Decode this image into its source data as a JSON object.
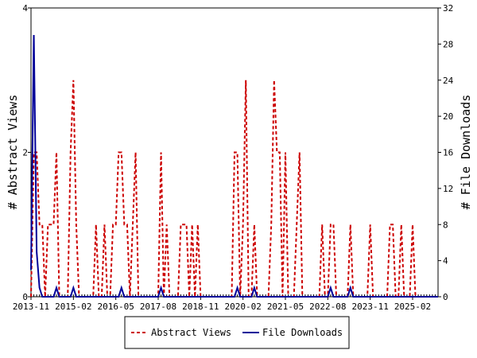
{
  "chart_data": {
    "type": "line",
    "y_left_label": "# Abstract Views",
    "y_right_label": "# File Downloads",
    "y_left_lim": [
      0,
      4
    ],
    "y_left_ticks": [
      0,
      2,
      4
    ],
    "y_right_lim": [
      0,
      32
    ],
    "y_right_ticks": [
      0,
      4,
      8,
      12,
      16,
      20,
      24,
      28,
      32
    ],
    "x_start": "2013-11",
    "x_end": "2025-11",
    "x_tick_labels": [
      "2013-11",
      "2015-02",
      "2016-05",
      "2017-08",
      "2018-11",
      "2020-02",
      "2021-05",
      "2022-08",
      "2023-11",
      "2025-02"
    ],
    "legend_position": "bottom",
    "series": [
      {
        "name": "Abstract Views",
        "axis": "left",
        "color": "#cc0000",
        "style": "dashed",
        "points": [
          [
            "2013-11",
            0
          ],
          [
            "2013-12",
            2
          ],
          [
            "2014-01",
            2
          ],
          [
            "2014-02",
            1
          ],
          [
            "2014-03",
            1
          ],
          [
            "2014-04",
            0
          ],
          [
            "2014-05",
            1
          ],
          [
            "2014-06",
            1
          ],
          [
            "2014-07",
            1
          ],
          [
            "2014-08",
            2
          ],
          [
            "2014-09",
            0
          ],
          [
            "2014-10",
            0
          ],
          [
            "2014-11",
            0
          ],
          [
            "2014-12",
            0
          ],
          [
            "2015-01",
            2
          ],
          [
            "2015-02",
            3
          ],
          [
            "2015-03",
            1
          ],
          [
            "2015-04",
            0
          ],
          [
            "2015-05",
            0
          ],
          [
            "2015-06",
            0
          ],
          [
            "2015-07",
            0
          ],
          [
            "2015-08",
            0
          ],
          [
            "2015-09",
            0
          ],
          [
            "2015-10",
            1
          ],
          [
            "2015-11",
            0
          ],
          [
            "2015-12",
            0
          ],
          [
            "2016-01",
            1
          ],
          [
            "2016-02",
            0
          ],
          [
            "2016-03",
            0
          ],
          [
            "2016-04",
            1
          ],
          [
            "2016-05",
            1
          ],
          [
            "2016-06",
            2
          ],
          [
            "2016-07",
            2
          ],
          [
            "2016-08",
            1
          ],
          [
            "2016-09",
            1
          ],
          [
            "2016-10",
            0
          ],
          [
            "2016-11",
            1
          ],
          [
            "2016-12",
            2
          ],
          [
            "2017-01",
            0
          ],
          [
            "2017-02",
            0
          ],
          [
            "2017-03",
            0
          ],
          [
            "2017-04",
            0
          ],
          [
            "2017-05",
            0
          ],
          [
            "2017-06",
            0
          ],
          [
            "2017-07",
            0
          ],
          [
            "2017-08",
            0
          ],
          [
            "2017-09",
            2
          ],
          [
            "2017-10",
            0
          ],
          [
            "2017-11",
            1
          ],
          [
            "2017-12",
            0
          ],
          [
            "2018-01",
            0
          ],
          [
            "2018-02",
            0
          ],
          [
            "2018-03",
            0
          ],
          [
            "2018-04",
            1
          ],
          [
            "2018-05",
            1
          ],
          [
            "2018-06",
            1
          ],
          [
            "2018-07",
            0
          ],
          [
            "2018-08",
            1
          ],
          [
            "2018-09",
            0
          ],
          [
            "2018-10",
            1
          ],
          [
            "2018-11",
            0
          ],
          [
            "2018-12",
            0
          ],
          [
            "2019-01",
            0
          ],
          [
            "2019-02",
            0
          ],
          [
            "2019-03",
            0
          ],
          [
            "2019-04",
            0
          ],
          [
            "2019-05",
            0
          ],
          [
            "2019-06",
            0
          ],
          [
            "2019-07",
            0
          ],
          [
            "2019-08",
            0
          ],
          [
            "2019-09",
            0
          ],
          [
            "2019-10",
            0
          ],
          [
            "2019-11",
            2
          ],
          [
            "2019-12",
            2
          ],
          [
            "2020-01",
            0
          ],
          [
            "2020-02",
            1
          ],
          [
            "2020-03",
            3
          ],
          [
            "2020-04",
            0
          ],
          [
            "2020-05",
            0
          ],
          [
            "2020-06",
            1
          ],
          [
            "2020-07",
            0
          ],
          [
            "2020-08",
            0
          ],
          [
            "2020-09",
            0
          ],
          [
            "2020-10",
            0
          ],
          [
            "2020-11",
            0
          ],
          [
            "2020-12",
            1
          ],
          [
            "2021-01",
            3
          ],
          [
            "2021-02",
            2
          ],
          [
            "2021-03",
            2
          ],
          [
            "2021-04",
            0
          ],
          [
            "2021-05",
            2
          ],
          [
            "2021-06",
            0
          ],
          [
            "2021-07",
            0
          ],
          [
            "2021-08",
            0
          ],
          [
            "2021-09",
            1
          ],
          [
            "2021-10",
            2
          ],
          [
            "2021-11",
            0
          ],
          [
            "2021-12",
            0
          ],
          [
            "2022-01",
            0
          ],
          [
            "2022-02",
            0
          ],
          [
            "2022-03",
            0
          ],
          [
            "2022-04",
            0
          ],
          [
            "2022-05",
            0
          ],
          [
            "2022-06",
            1
          ],
          [
            "2022-07",
            0
          ],
          [
            "2022-08",
            0
          ],
          [
            "2022-09",
            1
          ],
          [
            "2022-10",
            1
          ],
          [
            "2022-11",
            0
          ],
          [
            "2022-12",
            0
          ],
          [
            "2023-01",
            0
          ],
          [
            "2023-02",
            0
          ],
          [
            "2023-03",
            0
          ],
          [
            "2023-04",
            1
          ],
          [
            "2023-05",
            0
          ],
          [
            "2023-06",
            0
          ],
          [
            "2023-07",
            0
          ],
          [
            "2023-08",
            0
          ],
          [
            "2023-09",
            0
          ],
          [
            "2023-10",
            0
          ],
          [
            "2023-11",
            1
          ],
          [
            "2023-12",
            0
          ],
          [
            "2024-01",
            0
          ],
          [
            "2024-02",
            0
          ],
          [
            "2024-03",
            0
          ],
          [
            "2024-04",
            0
          ],
          [
            "2024-05",
            0
          ],
          [
            "2024-06",
            1
          ],
          [
            "2024-07",
            1
          ],
          [
            "2024-08",
            0
          ],
          [
            "2024-09",
            0
          ],
          [
            "2024-10",
            1
          ],
          [
            "2024-11",
            0
          ],
          [
            "2024-12",
            0
          ],
          [
            "2025-01",
            0
          ],
          [
            "2025-02",
            1
          ],
          [
            "2025-03",
            0
          ],
          [
            "2025-04",
            0
          ],
          [
            "2025-05",
            0
          ],
          [
            "2025-06",
            0
          ],
          [
            "2025-07",
            0
          ],
          [
            "2025-08",
            0
          ],
          [
            "2025-09",
            0
          ],
          [
            "2025-10",
            0
          ],
          [
            "2025-11",
            0
          ]
        ]
      },
      {
        "name": "File Downloads",
        "axis": "right",
        "color": "#000099",
        "style": "solid",
        "points": [
          [
            "2013-11",
            3
          ],
          [
            "2013-12",
            29
          ],
          [
            "2014-01",
            5
          ],
          [
            "2014-02",
            1
          ],
          [
            "2014-03",
            0
          ],
          [
            "2014-04",
            0
          ],
          [
            "2014-05",
            0
          ],
          [
            "2014-06",
            0
          ],
          [
            "2014-07",
            0
          ],
          [
            "2014-08",
            1
          ],
          [
            "2014-09",
            0
          ],
          [
            "2014-10",
            0
          ],
          [
            "2014-11",
            0
          ],
          [
            "2014-12",
            0
          ],
          [
            "2015-01",
            0
          ],
          [
            "2015-02",
            1
          ],
          [
            "2015-03",
            0
          ],
          [
            "2015-04",
            0
          ],
          [
            "2015-05",
            0
          ],
          [
            "2015-06",
            0
          ],
          [
            "2015-07",
            0
          ],
          [
            "2015-08",
            0
          ],
          [
            "2015-09",
            0
          ],
          [
            "2015-10",
            0
          ],
          [
            "2015-11",
            0
          ],
          [
            "2015-12",
            0
          ],
          [
            "2016-01",
            0
          ],
          [
            "2016-02",
            0
          ],
          [
            "2016-03",
            0
          ],
          [
            "2016-04",
            0
          ],
          [
            "2016-05",
            0
          ],
          [
            "2016-06",
            0
          ],
          [
            "2016-07",
            1
          ],
          [
            "2016-08",
            0
          ],
          [
            "2016-09",
            0
          ],
          [
            "2016-10",
            0
          ],
          [
            "2016-11",
            0
          ],
          [
            "2016-12",
            0
          ],
          [
            "2017-01",
            0
          ],
          [
            "2017-02",
            0
          ],
          [
            "2017-03",
            0
          ],
          [
            "2017-04",
            0
          ],
          [
            "2017-05",
            0
          ],
          [
            "2017-06",
            0
          ],
          [
            "2017-07",
            0
          ],
          [
            "2017-08",
            0
          ],
          [
            "2017-09",
            1
          ],
          [
            "2017-10",
            0
          ],
          [
            "2017-11",
            0
          ],
          [
            "2017-12",
            0
          ],
          [
            "2018-01",
            0
          ],
          [
            "2018-02",
            0
          ],
          [
            "2018-03",
            0
          ],
          [
            "2018-04",
            0
          ],
          [
            "2018-05",
            0
          ],
          [
            "2018-06",
            0
          ],
          [
            "2018-07",
            0
          ],
          [
            "2018-08",
            0
          ],
          [
            "2018-09",
            0
          ],
          [
            "2018-10",
            0
          ],
          [
            "2018-11",
            0
          ],
          [
            "2018-12",
            0
          ],
          [
            "2019-01",
            0
          ],
          [
            "2019-02",
            0
          ],
          [
            "2019-03",
            0
          ],
          [
            "2019-04",
            0
          ],
          [
            "2019-05",
            0
          ],
          [
            "2019-06",
            0
          ],
          [
            "2019-07",
            0
          ],
          [
            "2019-08",
            0
          ],
          [
            "2019-09",
            0
          ],
          [
            "2019-10",
            0
          ],
          [
            "2019-11",
            0
          ],
          [
            "2019-12",
            1
          ],
          [
            "2020-01",
            0
          ],
          [
            "2020-02",
            0
          ],
          [
            "2020-03",
            0
          ],
          [
            "2020-04",
            0
          ],
          [
            "2020-05",
            0
          ],
          [
            "2020-06",
            1
          ],
          [
            "2020-07",
            0
          ],
          [
            "2020-08",
            0
          ],
          [
            "2020-09",
            0
          ],
          [
            "2020-10",
            0
          ],
          [
            "2020-11",
            0
          ],
          [
            "2020-12",
            0
          ],
          [
            "2021-01",
            0
          ],
          [
            "2021-02",
            0
          ],
          [
            "2021-03",
            0
          ],
          [
            "2021-04",
            0
          ],
          [
            "2021-05",
            0
          ],
          [
            "2021-06",
            0
          ],
          [
            "2021-07",
            0
          ],
          [
            "2021-08",
            0
          ],
          [
            "2021-09",
            0
          ],
          [
            "2021-10",
            0
          ],
          [
            "2021-11",
            0
          ],
          [
            "2021-12",
            0
          ],
          [
            "2022-01",
            0
          ],
          [
            "2022-02",
            0
          ],
          [
            "2022-03",
            0
          ],
          [
            "2022-04",
            0
          ],
          [
            "2022-05",
            0
          ],
          [
            "2022-06",
            0
          ],
          [
            "2022-07",
            0
          ],
          [
            "2022-08",
            0
          ],
          [
            "2022-09",
            1
          ],
          [
            "2022-10",
            0
          ],
          [
            "2022-11",
            0
          ],
          [
            "2022-12",
            0
          ],
          [
            "2023-01",
            0
          ],
          [
            "2023-02",
            0
          ],
          [
            "2023-03",
            0
          ],
          [
            "2023-04",
            1
          ],
          [
            "2023-05",
            0
          ],
          [
            "2023-06",
            0
          ],
          [
            "2023-07",
            0
          ],
          [
            "2023-08",
            0
          ],
          [
            "2023-09",
            0
          ],
          [
            "2023-10",
            0
          ],
          [
            "2023-11",
            0
          ],
          [
            "2023-12",
            0
          ],
          [
            "2024-01",
            0
          ],
          [
            "2024-02",
            0
          ],
          [
            "2024-03",
            0
          ],
          [
            "2024-04",
            0
          ],
          [
            "2024-05",
            0
          ],
          [
            "2024-06",
            0
          ],
          [
            "2024-07",
            0
          ],
          [
            "2024-08",
            0
          ],
          [
            "2024-09",
            0
          ],
          [
            "2024-10",
            0
          ],
          [
            "2024-11",
            0
          ],
          [
            "2024-12",
            0
          ],
          [
            "2025-01",
            0
          ],
          [
            "2025-02",
            0
          ],
          [
            "2025-03",
            0
          ],
          [
            "2025-04",
            0
          ],
          [
            "2025-05",
            0
          ],
          [
            "2025-06",
            0
          ],
          [
            "2025-07",
            0
          ],
          [
            "2025-08",
            0
          ],
          [
            "2025-09",
            0
          ],
          [
            "2025-10",
            0
          ],
          [
            "2025-11",
            0
          ]
        ]
      }
    ]
  }
}
